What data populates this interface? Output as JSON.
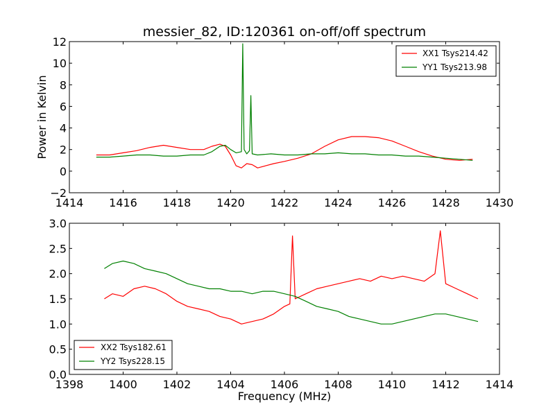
{
  "chart_data": [
    {
      "type": "line",
      "title": "messier_82, ID:120361 on-off/off spectrum",
      "xlabel": "",
      "ylabel": "Power in Kelvin",
      "xlim": [
        1414,
        1430
      ],
      "ylim": [
        -2,
        12
      ],
      "xticks": [
        1414,
        1416,
        1418,
        1420,
        1422,
        1424,
        1426,
        1428,
        1430
      ],
      "yticks": [
        -2,
        0,
        2,
        4,
        6,
        8,
        10,
        12
      ],
      "legend_position": "upper-right",
      "grid": false,
      "series": [
        {
          "name": "XX1 Tsys214.42",
          "color": "#ff0000",
          "x": [
            1415.0,
            1415.5,
            1416.0,
            1416.5,
            1417.0,
            1417.5,
            1418.0,
            1418.5,
            1419.0,
            1419.3,
            1419.6,
            1419.8,
            1420.0,
            1420.2,
            1420.4,
            1420.6,
            1420.8,
            1421.0,
            1421.3,
            1421.6,
            1422.0,
            1422.5,
            1423.0,
            1423.5,
            1424.0,
            1424.5,
            1425.0,
            1425.5,
            1426.0,
            1426.5,
            1427.0,
            1427.5,
            1428.0,
            1428.5,
            1429.0
          ],
          "y": [
            1.5,
            1.5,
            1.7,
            1.9,
            2.2,
            2.4,
            2.2,
            2.0,
            2.0,
            2.3,
            2.5,
            2.3,
            1.5,
            0.5,
            0.3,
            0.7,
            0.6,
            0.3,
            0.5,
            0.7,
            0.9,
            1.2,
            1.6,
            2.3,
            2.9,
            3.2,
            3.2,
            3.1,
            2.8,
            2.3,
            1.8,
            1.4,
            1.1,
            1.0,
            1.1
          ]
        },
        {
          "name": "YY1 Tsys213.98",
          "color": "#008000",
          "x": [
            1415.0,
            1415.5,
            1416.0,
            1416.5,
            1417.0,
            1417.5,
            1418.0,
            1418.5,
            1419.0,
            1419.3,
            1419.6,
            1419.8,
            1420.0,
            1420.2,
            1420.4,
            1420.45,
            1420.5,
            1420.6,
            1420.7,
            1420.75,
            1420.8,
            1421.0,
            1421.5,
            1422.0,
            1422.5,
            1423.0,
            1423.5,
            1424.0,
            1424.5,
            1425.0,
            1425.5,
            1426.0,
            1426.5,
            1427.0,
            1427.5,
            1428.0,
            1428.5,
            1429.0
          ],
          "y": [
            1.3,
            1.3,
            1.4,
            1.5,
            1.5,
            1.4,
            1.4,
            1.5,
            1.5,
            1.8,
            2.3,
            2.4,
            2.0,
            1.7,
            1.8,
            11.8,
            2.0,
            1.6,
            1.9,
            7.0,
            1.6,
            1.5,
            1.6,
            1.5,
            1.5,
            1.6,
            1.6,
            1.7,
            1.6,
            1.6,
            1.5,
            1.5,
            1.4,
            1.4,
            1.3,
            1.2,
            1.1,
            1.0
          ]
        }
      ]
    },
    {
      "type": "line",
      "title": "",
      "xlabel": "Frequency (MHz)",
      "ylabel": "",
      "xlim": [
        1398,
        1414
      ],
      "ylim": [
        0.0,
        3.0
      ],
      "xticks": [
        1398,
        1400,
        1402,
        1404,
        1406,
        1408,
        1410,
        1412,
        1414
      ],
      "yticks": [
        0.0,
        0.5,
        1.0,
        1.5,
        2.0,
        2.5,
        3.0
      ],
      "legend_position": "lower-left",
      "grid": false,
      "series": [
        {
          "name": "XX2 Tsys182.61",
          "color": "#ff0000",
          "x": [
            1399.3,
            1399.6,
            1400.0,
            1400.4,
            1400.8,
            1401.2,
            1401.6,
            1402.0,
            1402.4,
            1402.8,
            1403.2,
            1403.6,
            1404.0,
            1404.4,
            1404.8,
            1405.2,
            1405.6,
            1406.0,
            1406.2,
            1406.3,
            1406.4,
            1406.8,
            1407.2,
            1407.6,
            1408.0,
            1408.4,
            1408.8,
            1409.2,
            1409.6,
            1410.0,
            1410.4,
            1410.8,
            1411.2,
            1411.6,
            1411.8,
            1412.0,
            1412.4,
            1412.8,
            1413.2
          ],
          "y": [
            1.5,
            1.6,
            1.55,
            1.7,
            1.75,
            1.7,
            1.6,
            1.45,
            1.35,
            1.3,
            1.25,
            1.15,
            1.1,
            1.0,
            1.05,
            1.1,
            1.2,
            1.35,
            1.4,
            2.75,
            1.5,
            1.6,
            1.7,
            1.75,
            1.8,
            1.85,
            1.9,
            1.85,
            1.95,
            1.9,
            1.95,
            1.9,
            1.85,
            2.0,
            2.85,
            1.8,
            1.7,
            1.6,
            1.5
          ]
        },
        {
          "name": "YY2 Tsys228.15",
          "color": "#008000",
          "x": [
            1399.3,
            1399.6,
            1400.0,
            1400.4,
            1400.8,
            1401.2,
            1401.6,
            1402.0,
            1402.4,
            1402.8,
            1403.2,
            1403.6,
            1404.0,
            1404.4,
            1404.8,
            1405.2,
            1405.6,
            1406.0,
            1406.4,
            1406.8,
            1407.2,
            1407.6,
            1408.0,
            1408.4,
            1408.8,
            1409.2,
            1409.6,
            1410.0,
            1410.4,
            1410.8,
            1411.2,
            1411.6,
            1412.0,
            1412.4,
            1412.8,
            1413.2
          ],
          "y": [
            2.1,
            2.2,
            2.25,
            2.2,
            2.1,
            2.05,
            2.0,
            1.9,
            1.8,
            1.75,
            1.7,
            1.7,
            1.65,
            1.65,
            1.6,
            1.65,
            1.65,
            1.6,
            1.55,
            1.45,
            1.35,
            1.3,
            1.25,
            1.15,
            1.1,
            1.05,
            1.0,
            1.0,
            1.05,
            1.1,
            1.15,
            1.2,
            1.2,
            1.15,
            1.1,
            1.05
          ]
        }
      ]
    }
  ]
}
